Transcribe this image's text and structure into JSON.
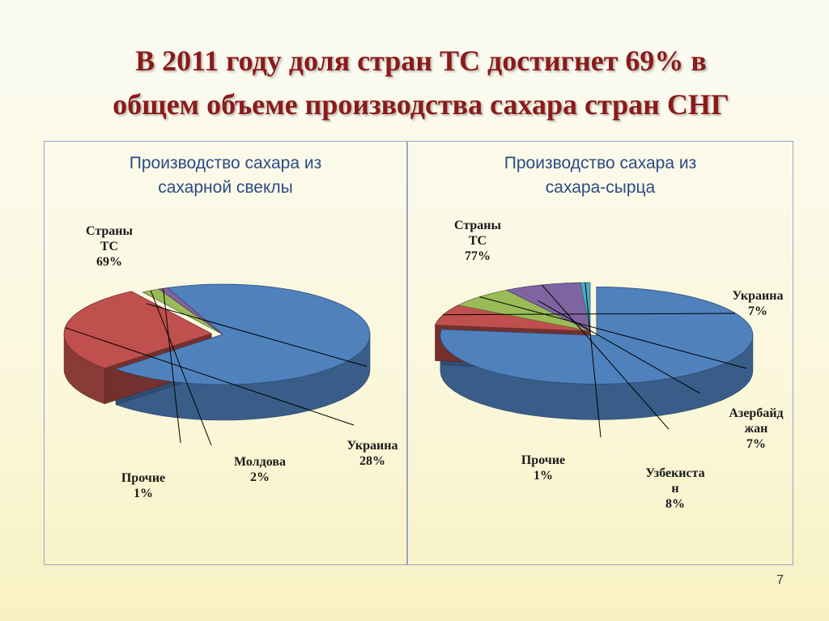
{
  "slide": {
    "title_line1": "В 2011 году доля стран ТС достигнет 69% в",
    "title_line2": "общем объеме  производства сахара стран СНГ",
    "page_number": "7"
  },
  "chart_data": [
    {
      "type": "pie",
      "title_line1": "Производство сахара из",
      "title_line2": "сахарной свеклы",
      "three_d": true,
      "exploded_slice": "Украина",
      "slices": [
        {
          "name": "Страны ТС",
          "value": 69,
          "label": [
            "Страны",
            "ТС",
            "69%"
          ],
          "color": "#4f81bd"
        },
        {
          "name": "Украина",
          "value": 28,
          "label": [
            "Украина",
            "28%"
          ],
          "color": "#c0504d"
        },
        {
          "name": "Молдова",
          "value": 2,
          "label": [
            "Молдова",
            "2%"
          ],
          "color": "#9bbb59"
        },
        {
          "name": "Прочие",
          "value": 1,
          "label": [
            "Прочие",
            "1%"
          ],
          "color": "#8064a2"
        }
      ]
    },
    {
      "type": "pie",
      "title_line1": "Производство сахара из",
      "title_line2": "сахара-сырца",
      "three_d": true,
      "exploded_slice": "Страны ТС",
      "slices": [
        {
          "name": "Страны ТС",
          "value": 77,
          "label": [
            "Страны",
            "ТС",
            "77%"
          ],
          "color": "#4f81bd"
        },
        {
          "name": "Украина",
          "value": 7,
          "label": [
            "Украина",
            "7%"
          ],
          "color": "#c0504d"
        },
        {
          "name": "Азербайджан",
          "value": 7,
          "label": [
            "Азербайд",
            "жан",
            "7%"
          ],
          "color": "#9bbb59"
        },
        {
          "name": "Узбекистан",
          "value": 8,
          "label": [
            "Узбекиста",
            "н",
            "8%"
          ],
          "color": "#8064a2"
        },
        {
          "name": "Прочие",
          "value": 1,
          "label": [
            "Прочие",
            "1%"
          ],
          "color": "#4bacc6"
        }
      ]
    }
  ]
}
